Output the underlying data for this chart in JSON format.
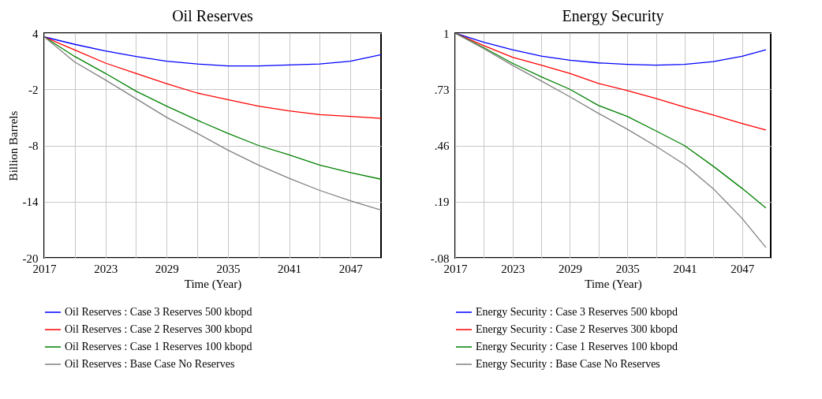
{
  "chart_data": [
    {
      "type": "line",
      "title": "Oil Reserves",
      "xlabel": "Time (Year)",
      "ylabel": "Billion Barrels",
      "x": [
        2017,
        2020,
        2023,
        2026,
        2029,
        2032,
        2035,
        2038,
        2041,
        2044,
        2047,
        2050
      ],
      "series": [
        {
          "name": "Oil Reserves : Case 3 Reserves 500 kbopd",
          "color": "#0000ff",
          "values": [
            3.6,
            2.8,
            2.1,
            1.5,
            1.0,
            0.7,
            0.5,
            0.5,
            0.6,
            0.7,
            1.0,
            1.7
          ]
        },
        {
          "name": "Oil Reserves : Case 2 Reserves 300 kbopd",
          "color": "#ff0000",
          "values": [
            3.6,
            2.2,
            0.8,
            -0.3,
            -1.4,
            -2.4,
            -3.1,
            -3.8,
            -4.3,
            -4.7,
            -4.9,
            -5.1
          ]
        },
        {
          "name": "Oil Reserves : Case 1 Reserves 100 kbopd",
          "color": "#008000",
          "values": [
            3.6,
            1.5,
            -0.3,
            -2.2,
            -3.8,
            -5.3,
            -6.7,
            -8.0,
            -9.0,
            -10.1,
            -10.9,
            -11.6
          ]
        },
        {
          "name": "Oil Reserves : Base Case No Reserves",
          "color": "#808080",
          "values": [
            3.6,
            0.9,
            -1.0,
            -3.0,
            -5.0,
            -6.7,
            -8.5,
            -10.1,
            -11.5,
            -12.8,
            -13.9,
            -14.9
          ]
        }
      ],
      "xlim": [
        2017,
        2050
      ],
      "xticks": [
        2017,
        {
          "value": 2020,
          "label": null
        },
        2023,
        {
          "value": 2026,
          "label": null
        },
        2029,
        {
          "value": 2032,
          "label": null
        },
        2035,
        {
          "value": 2038,
          "label": null
        },
        2041,
        {
          "value": 2044,
          "label": null
        },
        2047
      ],
      "ylim": [
        -20,
        4
      ],
      "yticks": [
        4,
        -2,
        -8,
        -14,
        -20
      ],
      "grid": true,
      "legend": "bottom",
      "marker": "none",
      "line_style": "solid"
    },
    {
      "type": "line",
      "title": "Energy Security",
      "xlabel": "Time (Year)",
      "x": [
        2017,
        2020,
        2023,
        2026,
        2029,
        2032,
        2035,
        2038,
        2041,
        2044,
        2047,
        2049.5
      ],
      "series": [
        {
          "name": "Energy Security : Case 3 Reserves 500 kbopd",
          "color": "#0000ff",
          "values": [
            1.0,
            0.956,
            0.92,
            0.89,
            0.87,
            0.857,
            0.85,
            0.846,
            0.85,
            0.863,
            0.889,
            0.92
          ]
        },
        {
          "name": "Energy Security : Case 2 Reserves 300 kbopd",
          "color": "#ff0000",
          "values": [
            1.0,
            0.94,
            0.884,
            0.846,
            0.806,
            0.758,
            0.724,
            0.686,
            0.644,
            0.606,
            0.566,
            0.534
          ]
        },
        {
          "name": "Energy Security : Case 1 Reserves 100 kbopd",
          "color": "#008000",
          "values": [
            1.0,
            0.93,
            0.855,
            0.79,
            0.73,
            0.652,
            0.6,
            0.53,
            0.459,
            0.36,
            0.254,
            0.16
          ]
        },
        {
          "name": "Energy Security : Base Case No Reserves",
          "color": "#808080",
          "values": [
            1.0,
            0.925,
            0.845,
            0.77,
            0.694,
            0.614,
            0.538,
            0.456,
            0.368,
            0.252,
            0.11,
            -0.03
          ]
        }
      ],
      "xlim": [
        2017,
        2050
      ],
      "xticks": [
        2017,
        {
          "value": 2020,
          "label": null
        },
        2023,
        {
          "value": 2026,
          "label": null
        },
        2029,
        {
          "value": 2032,
          "label": null
        },
        2035,
        {
          "value": 2038,
          "label": null
        },
        2041,
        {
          "value": 2044,
          "label": null
        },
        2047
      ],
      "ylim": [
        -0.08,
        1
      ],
      "yticks": [
        1,
        {
          "value": 0.73,
          "label": ".73"
        },
        {
          "value": 0.46,
          "label": ".46"
        },
        {
          "value": 0.19,
          "label": ".19"
        },
        {
          "value": -0.08,
          "label": "-.08"
        }
      ],
      "grid": true,
      "legend": "bottom",
      "marker": "none",
      "line_style": "solid"
    }
  ]
}
